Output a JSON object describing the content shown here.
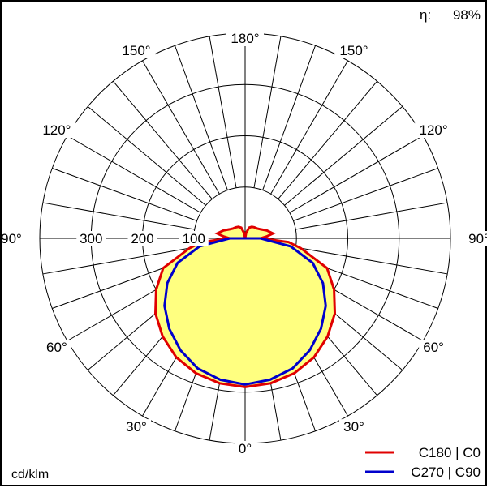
{
  "chart_data": {
    "type": "polar",
    "unit_label": "cd/klm",
    "efficiency_label": "η:",
    "efficiency_value": "98%",
    "radial_tick_labels": [
      "100",
      "200",
      "300"
    ],
    "radial_max": 400,
    "angle_labels": {
      "bottom": "0°",
      "top": "180°",
      "left": [
        "30°",
        "60°",
        "90°",
        "120°",
        "150°"
      ],
      "right": [
        "30°",
        "60°",
        "90°",
        "120°",
        "150°"
      ]
    },
    "series": [
      {
        "name": "C180 | C0",
        "color": "#e00000",
        "fill": "#ffff80",
        "angles": [
          0,
          10,
          20,
          30,
          40,
          50,
          60,
          70,
          80,
          85,
          90,
          95,
          100,
          110,
          120,
          130,
          140,
          150,
          160,
          170,
          180
        ],
        "values": [
          290,
          287,
          280,
          268,
          250,
          228,
          200,
          170,
          110,
          85,
          30,
          42,
          55,
          45,
          35,
          30,
          28,
          26,
          22,
          10,
          0
        ]
      },
      {
        "name": "C270 | C90",
        "color": "#0000cc",
        "angles": [
          0,
          10,
          20,
          30,
          40,
          50,
          60,
          70,
          80,
          90,
          100,
          110,
          120,
          130,
          140,
          150,
          160,
          170,
          180
        ],
        "values": [
          285,
          280,
          270,
          252,
          230,
          205,
          175,
          140,
          90,
          30,
          0,
          0,
          0,
          0,
          0,
          0,
          0,
          0,
          0
        ]
      }
    ]
  }
}
